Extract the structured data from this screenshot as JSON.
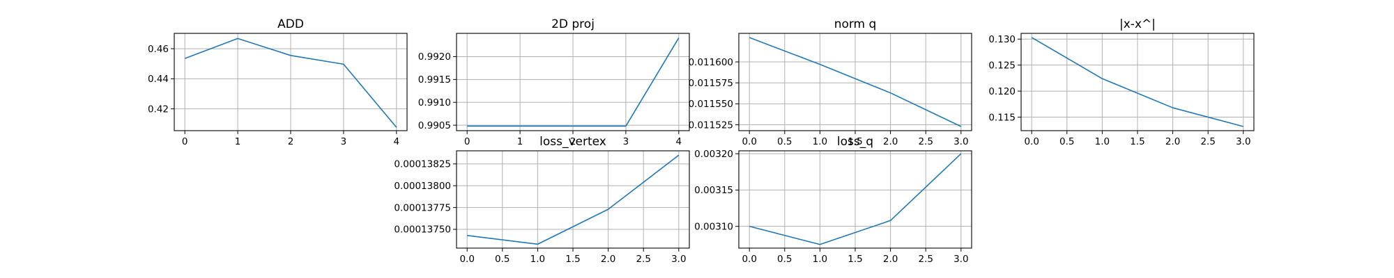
{
  "chart_data": [
    {
      "type": "line",
      "title": "ADD",
      "x": [
        0,
        1,
        2,
        3,
        4
      ],
      "series": [
        {
          "values": [
            0.4535,
            0.4668,
            0.4555,
            0.4497,
            0.4077
          ]
        }
      ],
      "xlim": [
        -0.2,
        4.2
      ],
      "ylim": [
        0.4055,
        0.4702
      ],
      "xticks": [
        0,
        1,
        2,
        3,
        4
      ],
      "xtick_labels": [
        "0",
        "1",
        "2",
        "3",
        "4"
      ],
      "yticks": [
        0.42,
        0.44,
        0.46
      ],
      "ytick_labels": [
        "0.42",
        "0.44",
        "0.46"
      ],
      "grid": true,
      "color": "#1f77b4"
    },
    {
      "type": "line",
      "title": "2D proj",
      "x": [
        0,
        1,
        2,
        3,
        4
      ],
      "series": [
        {
          "values": [
            0.99048,
            0.99048,
            0.99048,
            0.99048,
            0.99241
          ]
        }
      ],
      "xlim": [
        -0.2,
        4.2
      ],
      "ylim": [
        0.99038,
        0.99251
      ],
      "xticks": [
        0,
        1,
        2,
        3,
        4
      ],
      "xtick_labels": [
        "0",
        "1",
        "2",
        "3",
        "4"
      ],
      "yticks": [
        0.9905,
        0.991,
        0.9915,
        0.992
      ],
      "ytick_labels": [
        "0.9905",
        "0.9910",
        "0.9915",
        "0.9920"
      ],
      "grid": true,
      "color": "#1f77b4"
    },
    {
      "type": "line",
      "title": "norm q",
      "x": [
        0,
        1,
        2,
        3
      ],
      "series": [
        {
          "values": [
            0.011629,
            0.011597,
            0.011563,
            0.011523
          ]
        }
      ],
      "xlim": [
        -0.15,
        3.15
      ],
      "ylim": [
        0.011518,
        0.011634
      ],
      "xticks": [
        0,
        0.5,
        1,
        1.5,
        2,
        2.5,
        3
      ],
      "xtick_labels": [
        "0.0",
        "0.5",
        "1.0",
        "1.5",
        "2.0",
        "2.5",
        "3.0"
      ],
      "yticks": [
        0.011525,
        0.01155,
        0.011575,
        0.0116
      ],
      "ytick_labels": [
        "0.011525",
        "0.011550",
        "0.011575",
        "0.011600"
      ],
      "grid": true,
      "color": "#1f77b4"
    },
    {
      "type": "line",
      "title": "|x-x^|",
      "x": [
        0,
        1,
        2,
        3
      ],
      "series": [
        {
          "values": [
            0.1303,
            0.1224,
            0.1168,
            0.1132
          ]
        }
      ],
      "xlim": [
        -0.15,
        3.15
      ],
      "ylim": [
        0.1124,
        0.1311
      ],
      "xticks": [
        0,
        0.5,
        1,
        1.5,
        2,
        2.5,
        3
      ],
      "xtick_labels": [
        "0.0",
        "0.5",
        "1.0",
        "1.5",
        "2.0",
        "2.5",
        "3.0"
      ],
      "yticks": [
        0.115,
        0.12,
        0.125,
        0.13
      ],
      "ytick_labels": [
        "0.115",
        "0.120",
        "0.125",
        "0.130"
      ],
      "grid": true,
      "color": "#1f77b4"
    },
    {
      "type": "line",
      "title": "loss_vertex",
      "x": [
        0,
        1,
        2,
        3
      ],
      "series": [
        {
          "values": [
            0.00013743,
            0.00013733,
            0.00013773,
            0.00013835
          ]
        }
      ],
      "xlim": [
        -0.15,
        3.15
      ],
      "ylim": [
        0.000137285,
        0.0001384
      ],
      "xticks": [
        0,
        0.5,
        1,
        1.5,
        2,
        2.5,
        3
      ],
      "xtick_labels": [
        "0.0",
        "0.5",
        "1.0",
        "1.5",
        "2.0",
        "2.5",
        "3.0"
      ],
      "yticks": [
        0.0001375,
        0.00013775,
        0.000138,
        0.00013825
      ],
      "ytick_labels": [
        "0.00013750",
        "0.00013775",
        "0.00013800",
        "0.00013825"
      ],
      "grid": true,
      "color": "#1f77b4"
    },
    {
      "type": "line",
      "title": "loss_q",
      "x": [
        0,
        1,
        2,
        3
      ],
      "series": [
        {
          "values": [
            0.0031,
            0.003075,
            0.003108,
            0.0032
          ]
        }
      ],
      "xlim": [
        -0.15,
        3.15
      ],
      "ylim": [
        0.00307,
        0.003204
      ],
      "xticks": [
        0,
        0.5,
        1,
        1.5,
        2,
        2.5,
        3
      ],
      "xtick_labels": [
        "0.0",
        "0.5",
        "1.0",
        "1.5",
        "2.0",
        "2.5",
        "3.0"
      ],
      "yticks": [
        0.0031,
        0.00315,
        0.0032
      ],
      "ytick_labels": [
        "0.00310",
        "0.00315",
        "0.00320"
      ],
      "grid": true,
      "color": "#1f77b4"
    }
  ]
}
